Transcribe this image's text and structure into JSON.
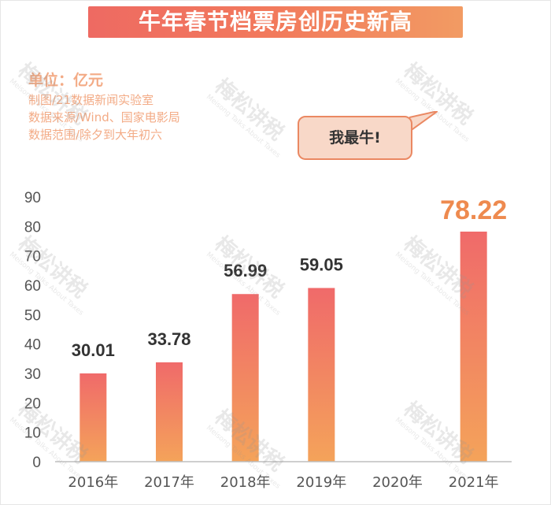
{
  "title": "牛年春节档票房创历史新高",
  "meta": {
    "unit": "单位：亿元",
    "lines": [
      "制图/21数据新闻实验室",
      "数据来源/Wind、国家电影局",
      "数据范围/除夕到大年初六"
    ]
  },
  "callout": "我最牛!",
  "watermark": {
    "text": "梅松讲税",
    "subtext": "Meisong Talks About Taxes"
  },
  "colors": {
    "accent": "#ef6a5f",
    "bar_top": "#f06a6a",
    "bar_bottom": "#f4a35a",
    "highlight_label": "#ee8a4f",
    "meta_text": "#f3ab86",
    "axis_text": "#555555"
  },
  "chart_data": {
    "type": "bar",
    "categories": [
      "2016年",
      "2017年",
      "2018年",
      "2019年",
      "2020年",
      "2021年"
    ],
    "values": [
      30.01,
      33.78,
      56.99,
      59.05,
      null,
      78.22
    ],
    "labels": [
      "30.01",
      "33.78",
      "56.99",
      "59.05",
      "",
      "78.22"
    ],
    "highlight_index": 5,
    "ylim": [
      0,
      90
    ],
    "yticks": [
      0,
      10,
      20,
      30,
      40,
      50,
      60,
      70,
      80,
      90
    ],
    "grid": false,
    "title": "",
    "xlabel": "",
    "ylabel": ""
  }
}
